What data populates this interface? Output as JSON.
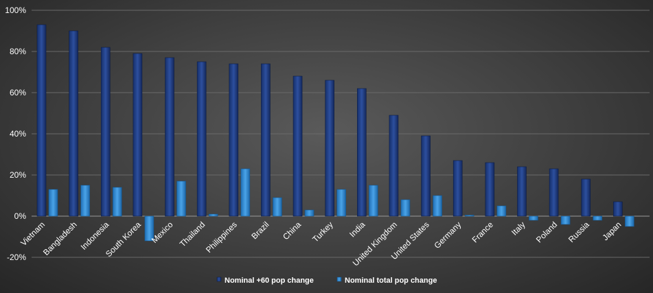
{
  "chart_data": {
    "type": "bar",
    "title": "",
    "xlabel": "",
    "ylabel": "",
    "ylim": [
      -20,
      100
    ],
    "yticks": [
      -20,
      0,
      20,
      40,
      60,
      80,
      100
    ],
    "ytick_labels": [
      "-20%",
      "0%",
      "20%",
      "40%",
      "60%",
      "80%",
      "100%"
    ],
    "grid": true,
    "legend_position": "bottom",
    "categories": [
      "Vietnam",
      "Bangladesh",
      "Indonesia",
      "South Korea",
      "Mexico",
      "Thailand",
      "Philippines",
      "Brazil",
      "China",
      "Turkey",
      "India",
      "United Kingdom",
      "United States",
      "Germany",
      "France",
      "Italy",
      "Poland",
      "Russia",
      "Japan"
    ],
    "series": [
      {
        "name": "Nominal +60 pop change",
        "color": "#1f3f87",
        "values": [
          93,
          90,
          82,
          79,
          77,
          75,
          74,
          74,
          68,
          66,
          62,
          49,
          39,
          27,
          26,
          24,
          23,
          18,
          7
        ]
      },
      {
        "name": "Nominal total pop change",
        "color": "#2f86cf",
        "values": [
          13,
          15,
          14,
          -12,
          17,
          1,
          23,
          9,
          3,
          13,
          15,
          8,
          10,
          0.5,
          5,
          -2,
          -4,
          -2,
          -5
        ]
      }
    ]
  }
}
